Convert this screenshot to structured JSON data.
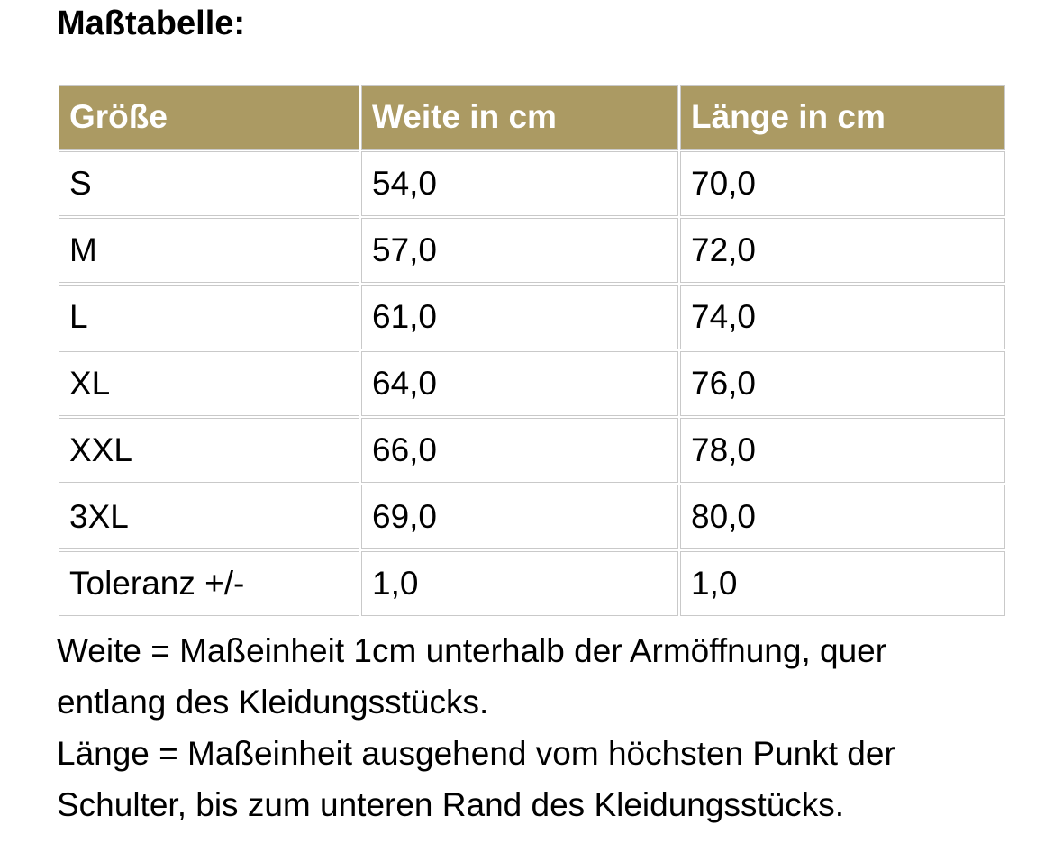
{
  "page": {
    "title": "Maßtabelle:"
  },
  "table": {
    "headers": [
      "Größe",
      "Weite in cm",
      "Länge in cm"
    ],
    "rows": [
      [
        "S",
        "54,0",
        "70,0"
      ],
      [
        "M",
        "57,0",
        "72,0"
      ],
      [
        "L",
        "61,0",
        "74,0"
      ],
      [
        "XL",
        "64,0",
        "76,0"
      ],
      [
        "XXL",
        "66,0",
        "78,0"
      ],
      [
        "3XL",
        "69,0",
        "80,0"
      ],
      [
        "Toleranz +/-",
        "1,0",
        "1,0"
      ]
    ]
  },
  "notes": {
    "lines": [
      "Weite = Maßeinheit 1cm unterhalb der Armöffnung, quer",
      "entlang des Kleidungsstücks.",
      "Länge = Maßeinheit ausgehend vom höchsten Punkt der",
      "Schulter, bis zum unteren Rand des Kleidungsstücks."
    ]
  },
  "colors": {
    "header_background": "#ab9a63",
    "header_text": "#ffffff",
    "cell_border": "#c9c9c9",
    "body_text": "#000000",
    "page_background": "#ffffff"
  }
}
